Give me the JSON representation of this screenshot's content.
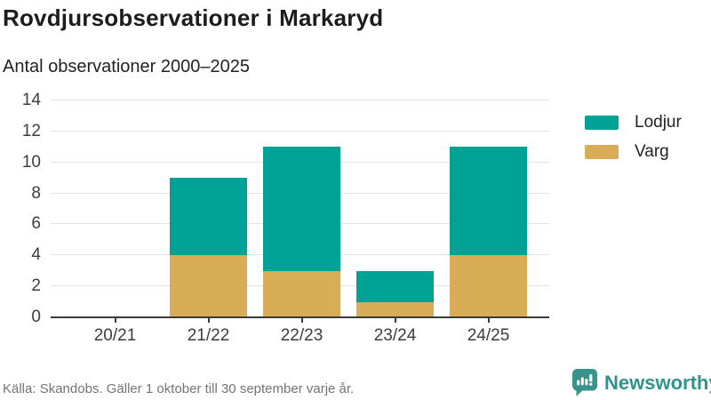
{
  "header": {
    "title": "Rovdjursobservationer i Markaryd",
    "subtitle": "Antal observationer 2000–2025"
  },
  "footer": {
    "source": "Källa: Skandobs. Gäller 1 oktober till 30 september varje år.",
    "brand_name": "Newsworthy"
  },
  "colors": {
    "lodjur": "#00A296",
    "varg": "#D9AD57",
    "gridline": "#e2e2e2",
    "axis": "#3b3b3b",
    "brand_teal": "#2f948b"
  },
  "chart_data": {
    "type": "bar",
    "stacked": true,
    "title": "Rovdjursobservationer i Markaryd",
    "subtitle": "Antal observationer 2000–2025",
    "categories": [
      "20/21",
      "21/22",
      "22/23",
      "23/24",
      "24/25"
    ],
    "series": [
      {
        "name": "Varg",
        "color": "#D9AD57",
        "values": [
          0,
          4,
          3,
          1,
          4
        ]
      },
      {
        "name": "Lodjur",
        "color": "#00A296",
        "values": [
          0,
          5,
          8,
          2,
          7
        ]
      }
    ],
    "totals": [
      0,
      9,
      11,
      3,
      11
    ],
    "legend": [
      "Lodjur",
      "Varg"
    ],
    "legend_position": "top-right",
    "xlabel": "",
    "ylabel": "",
    "ylim": [
      0,
      14
    ],
    "yticks": [
      0,
      2,
      4,
      6,
      8,
      10,
      12,
      14
    ],
    "grid": true
  }
}
